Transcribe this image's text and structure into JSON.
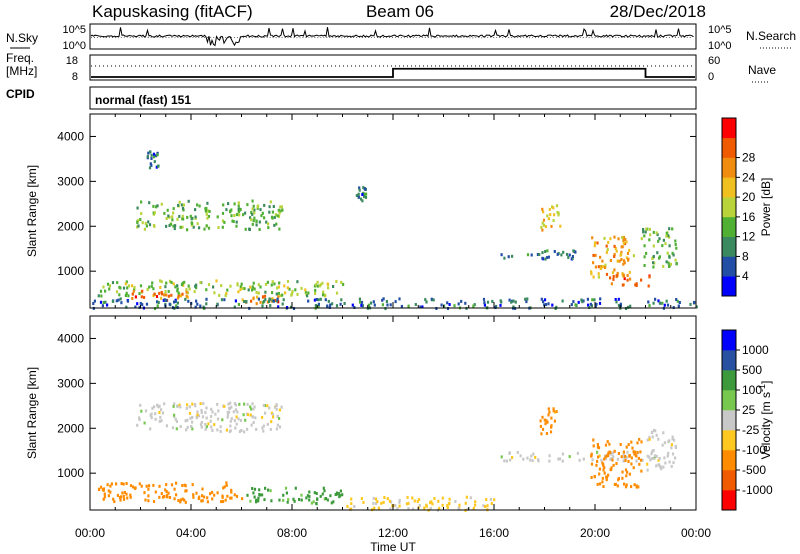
{
  "header": {
    "station": "Kapuskasing (fitACF)",
    "beam": "Beam 06",
    "date": "28/Dec/2018"
  },
  "noise_panel": {
    "left_label": "N.Sky",
    "left_ticks": [
      "10^5",
      "10^0"
    ],
    "right_label": "N.Search",
    "right_ticks": [
      "10^5",
      "10^0"
    ]
  },
  "freq_panel": {
    "left_label_1": "Freq.",
    "left_label_2": "[MHz]",
    "left_ticks": [
      "18",
      "8"
    ],
    "right_label": "Nave",
    "right_ticks": [
      "60",
      "0"
    ]
  },
  "cpid_panel": {
    "label": "CPID",
    "mode": "normal (fast) 151"
  },
  "colors": {
    "power": [
      "#0000ff",
      "#234ea6",
      "#3b8a5f",
      "#50b033",
      "#b8d43a",
      "#f0c020",
      "#f08c10",
      "#f05a00",
      "#ff0000"
    ],
    "velocity": [
      "#ff0000",
      "#f05a00",
      "#ff8c00",
      "#ffc820",
      "#c8c8c8",
      "#78c850",
      "#3c9a3c",
      "#2850a0",
      "#0000ff"
    ]
  },
  "chart_data": [
    {
      "type": "heatmap",
      "name": "power",
      "ylabel": "Slant Range [km]",
      "xlabel": "",
      "x_ticks": [
        "00:00",
        "04:00",
        "08:00",
        "12:00",
        "16:00",
        "20:00",
        "00:00"
      ],
      "y_ticks": [
        "1000",
        "2000",
        "3000",
        "4000"
      ],
      "xlim": [
        0,
        24
      ],
      "ylim": [
        180,
        4500
      ],
      "colorbar": {
        "label": "Power [dB]",
        "ticks": [
          "4",
          "8",
          "12",
          "16",
          "20",
          "24",
          "28"
        ],
        "range": [
          0,
          32
        ]
      },
      "regions": [
        {
          "t0": 1.8,
          "t1": 7.6,
          "r0": 1950,
          "r1": 2600,
          "value": 14
        },
        {
          "t0": 0.3,
          "t1": 10.0,
          "r0": 480,
          "r1": 820,
          "value": 16
        },
        {
          "t0": 1.5,
          "t1": 4.0,
          "r0": 380,
          "r1": 600,
          "value": 28
        },
        {
          "t0": 6.0,
          "t1": 7.5,
          "r0": 300,
          "r1": 480,
          "value": 28
        },
        {
          "t0": 0.0,
          "t1": 24.0,
          "r0": 200,
          "r1": 420,
          "value": 8
        },
        {
          "t0": 16.2,
          "t1": 19.5,
          "r0": 1300,
          "r1": 1500,
          "value": 8
        },
        {
          "t0": 17.8,
          "t1": 18.6,
          "r0": 1900,
          "r1": 2500,
          "value": 22
        },
        {
          "t0": 19.8,
          "t1": 21.5,
          "r0": 900,
          "r1": 1800,
          "value": 24
        },
        {
          "t0": 20.5,
          "t1": 22.2,
          "r0": 700,
          "r1": 950,
          "value": 28
        },
        {
          "t0": 21.8,
          "t1": 23.2,
          "r0": 1100,
          "r1": 2000,
          "value": 14
        },
        {
          "t0": 10.5,
          "t1": 10.9,
          "r0": 2600,
          "r1": 2900,
          "value": 8
        },
        {
          "t0": 2.2,
          "t1": 2.7,
          "r0": 3300,
          "r1": 3700,
          "value": 8
        }
      ]
    },
    {
      "type": "heatmap",
      "name": "velocity",
      "ylabel": "Slant Range [km]",
      "xlabel": "Time UT",
      "x_ticks": [
        "00:00",
        "04:00",
        "08:00",
        "12:00",
        "16:00",
        "20:00",
        "00:00"
      ],
      "y_ticks": [
        "1000",
        "2000",
        "3000",
        "4000"
      ],
      "xlim": [
        0,
        24
      ],
      "ylim": [
        180,
        4500
      ],
      "colorbar": {
        "label": "Velocity [m s^-1]",
        "ticks": [
          "-1000",
          "-500",
          "-100",
          "-25",
          "25",
          "100",
          "500",
          "1000"
        ],
        "range": [
          -1200,
          1200
        ]
      },
      "regions": [
        {
          "t0": 1.8,
          "t1": 7.6,
          "r0": 1950,
          "r1": 2600,
          "value": 0
        },
        {
          "t0": 0.3,
          "t1": 6.0,
          "r0": 380,
          "r1": 820,
          "value": -200
        },
        {
          "t0": 6.0,
          "t1": 10.0,
          "r0": 350,
          "r1": 700,
          "value": 150
        },
        {
          "t0": 10.0,
          "t1": 16.0,
          "r0": 200,
          "r1": 500,
          "value": -40
        },
        {
          "t0": 16.2,
          "t1": 22.5,
          "r0": 1300,
          "r1": 1500,
          "value": 0
        },
        {
          "t0": 19.8,
          "t1": 21.8,
          "r0": 700,
          "r1": 1800,
          "value": -300
        },
        {
          "t0": 17.8,
          "t1": 18.6,
          "r0": 1900,
          "r1": 2500,
          "value": -150
        },
        {
          "t0": 22.0,
          "t1": 23.2,
          "r0": 1100,
          "r1": 2000,
          "value": 0
        }
      ]
    }
  ]
}
